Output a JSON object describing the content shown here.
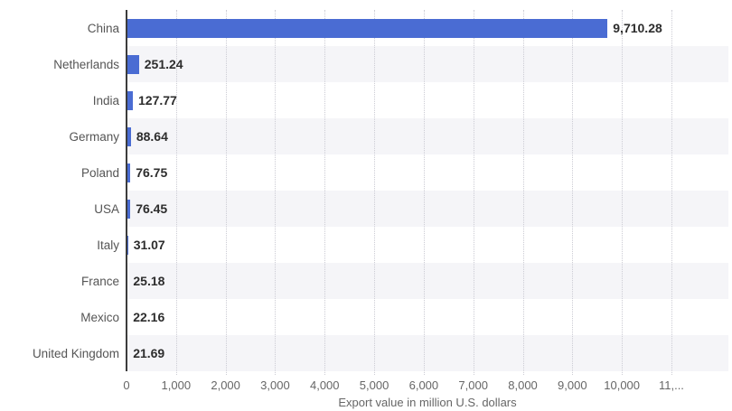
{
  "chart_data": {
    "type": "bar",
    "orientation": "horizontal",
    "title": "",
    "xlabel": "Export value in million U.S. dollars",
    "ylabel": "",
    "categories": [
      "China",
      "Netherlands",
      "India",
      "Germany",
      "Poland",
      "USA",
      "Italy",
      "France",
      "Mexico",
      "United Kingdom"
    ],
    "values": [
      9710.28,
      251.24,
      127.77,
      88.64,
      76.75,
      76.45,
      31.07,
      25.18,
      22.16,
      21.69
    ],
    "value_labels": [
      "9,710.28",
      "251.24",
      "127.77",
      "88.64",
      "76.75",
      "76.45",
      "31.07",
      "25.18",
      "22.16",
      "21.69"
    ],
    "xlim": [
      0,
      12150
    ],
    "x_ticks": [
      0,
      1000,
      2000,
      3000,
      4000,
      5000,
      6000,
      7000,
      8000,
      9000,
      10000,
      11000
    ],
    "x_tick_labels": [
      "0",
      "1,000",
      "2,000",
      "3,000",
      "4,000",
      "5,000",
      "6,000",
      "7,000",
      "8,000",
      "9,000",
      "10,000",
      "11,..."
    ],
    "grid": "vertical dotted gridlines on",
    "legend": "none",
    "row_bands": "alternating, shaded rows: Netherlands, Germany, USA, France, United Kingdom",
    "colors": {
      "bar": "#4a6cd3",
      "band": "#f5f5f8",
      "axis_line": "#3c3c3c",
      "gridline": "#ccccd4",
      "category_label": "#555555",
      "value_label": "#2d2d2d",
      "tick_label": "#666666",
      "background": "#ffffff"
    }
  }
}
